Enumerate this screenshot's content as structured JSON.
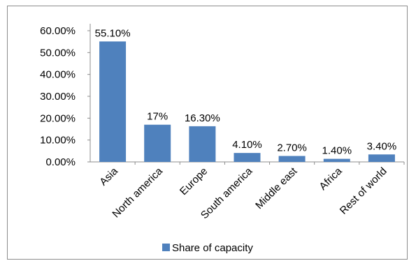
{
  "chart_data": {
    "type": "bar",
    "title": "",
    "xlabel": "",
    "ylabel": "",
    "categories": [
      "Asia",
      "North america",
      "Europe",
      "South america",
      "Middle east",
      "Africa",
      "Rest of world"
    ],
    "series": [
      {
        "name": "Share of capacity",
        "values": [
          55.1,
          17,
          16.3,
          4.1,
          2.7,
          1.4,
          3.4
        ],
        "data_labels": [
          "55.10%",
          "17%",
          "16.30%",
          "4.10%",
          "2.70%",
          "1.40%",
          "3.40%"
        ],
        "color": "#4f81bd"
      }
    ],
    "ylim": [
      0,
      60
    ],
    "y_ticks": [
      "0.00%",
      "10.00%",
      "20.00%",
      "30.00%",
      "40.00%",
      "50.00%",
      "60.00%"
    ],
    "grid": false,
    "legend": {
      "position": "bottom",
      "entries": [
        "Share of capacity"
      ]
    }
  }
}
